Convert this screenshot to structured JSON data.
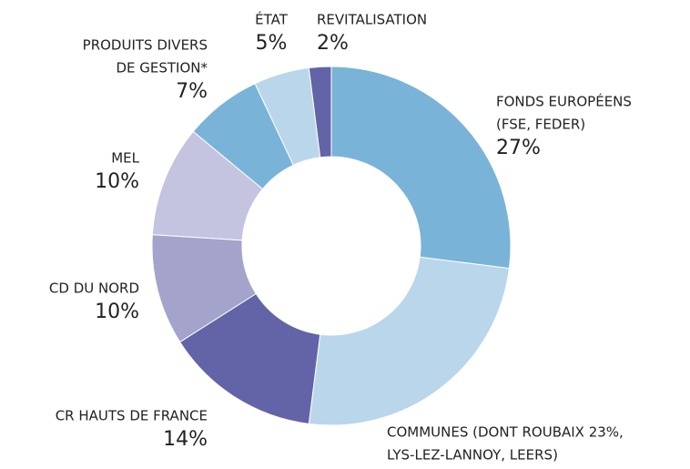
{
  "chart_data": {
    "type": "donut",
    "categories": [
      [
        "FONDS EUROPÉENS",
        "(FSE, FEDER)"
      ],
      [
        "COMMUNES (DONT ROUBAIX 23%,",
        "LYS-LEZ-LANNOY, LEERS)"
      ],
      [
        "CR HAUTS DE FRANCE"
      ],
      [
        "CD DU NORD"
      ],
      [
        "MEL"
      ],
      [
        "PRODUITS DIVERS",
        "DE GESTION*"
      ],
      [
        "ÉTAT"
      ],
      [
        "REVITALISATION"
      ]
    ],
    "values": [
      27,
      25,
      14,
      10,
      10,
      7,
      5,
      2
    ],
    "value_labels": [
      "27%",
      null,
      "14%",
      "10%",
      "10%",
      "7%",
      "5%",
      "2%"
    ],
    "colors": [
      "#7ab3d8",
      "#bad6eb",
      "#6264a7",
      "#a4a3cb",
      "#c4c3e0",
      "#7ab3d8",
      "#bad6eb",
      "#6264a7"
    ]
  }
}
